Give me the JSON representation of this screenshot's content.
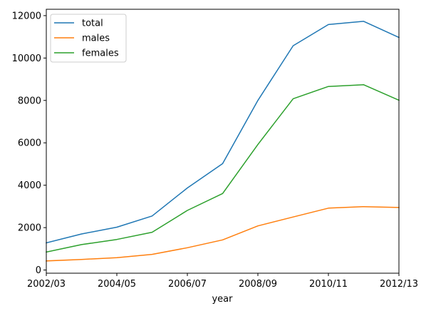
{
  "chart_data": {
    "type": "line",
    "title": "",
    "xlabel": "year",
    "ylabel": "",
    "x": [
      "2002/03",
      "2003/04",
      "2004/05",
      "2005/06",
      "2006/07",
      "2007/08",
      "2008/09",
      "2009/10",
      "2010/11",
      "2011/12",
      "2012/13"
    ],
    "xticks": [
      "2002/03",
      "2004/05",
      "2006/07",
      "2008/09",
      "2010/11",
      "2012/13"
    ],
    "yticks": [
      0,
      2000,
      4000,
      6000,
      8000,
      10000,
      12000
    ],
    "ylim": [
      -150,
      12300
    ],
    "grid": false,
    "legend_position": "top-left",
    "series": [
      {
        "name": "total",
        "color": "#1f77b4",
        "values": [
          1280,
          1700,
          2020,
          2550,
          3870,
          5020,
          8000,
          10580,
          11580,
          11730,
          10970
        ]
      },
      {
        "name": "males",
        "color": "#ff7f0e",
        "values": [
          430,
          500,
          580,
          740,
          1050,
          1420,
          2080,
          2500,
          2920,
          2990,
          2950
        ]
      },
      {
        "name": "females",
        "color": "#2ca02c",
        "values": [
          850,
          1200,
          1440,
          1780,
          2810,
          3610,
          5920,
          8080,
          8660,
          8740,
          8010
        ]
      }
    ]
  }
}
